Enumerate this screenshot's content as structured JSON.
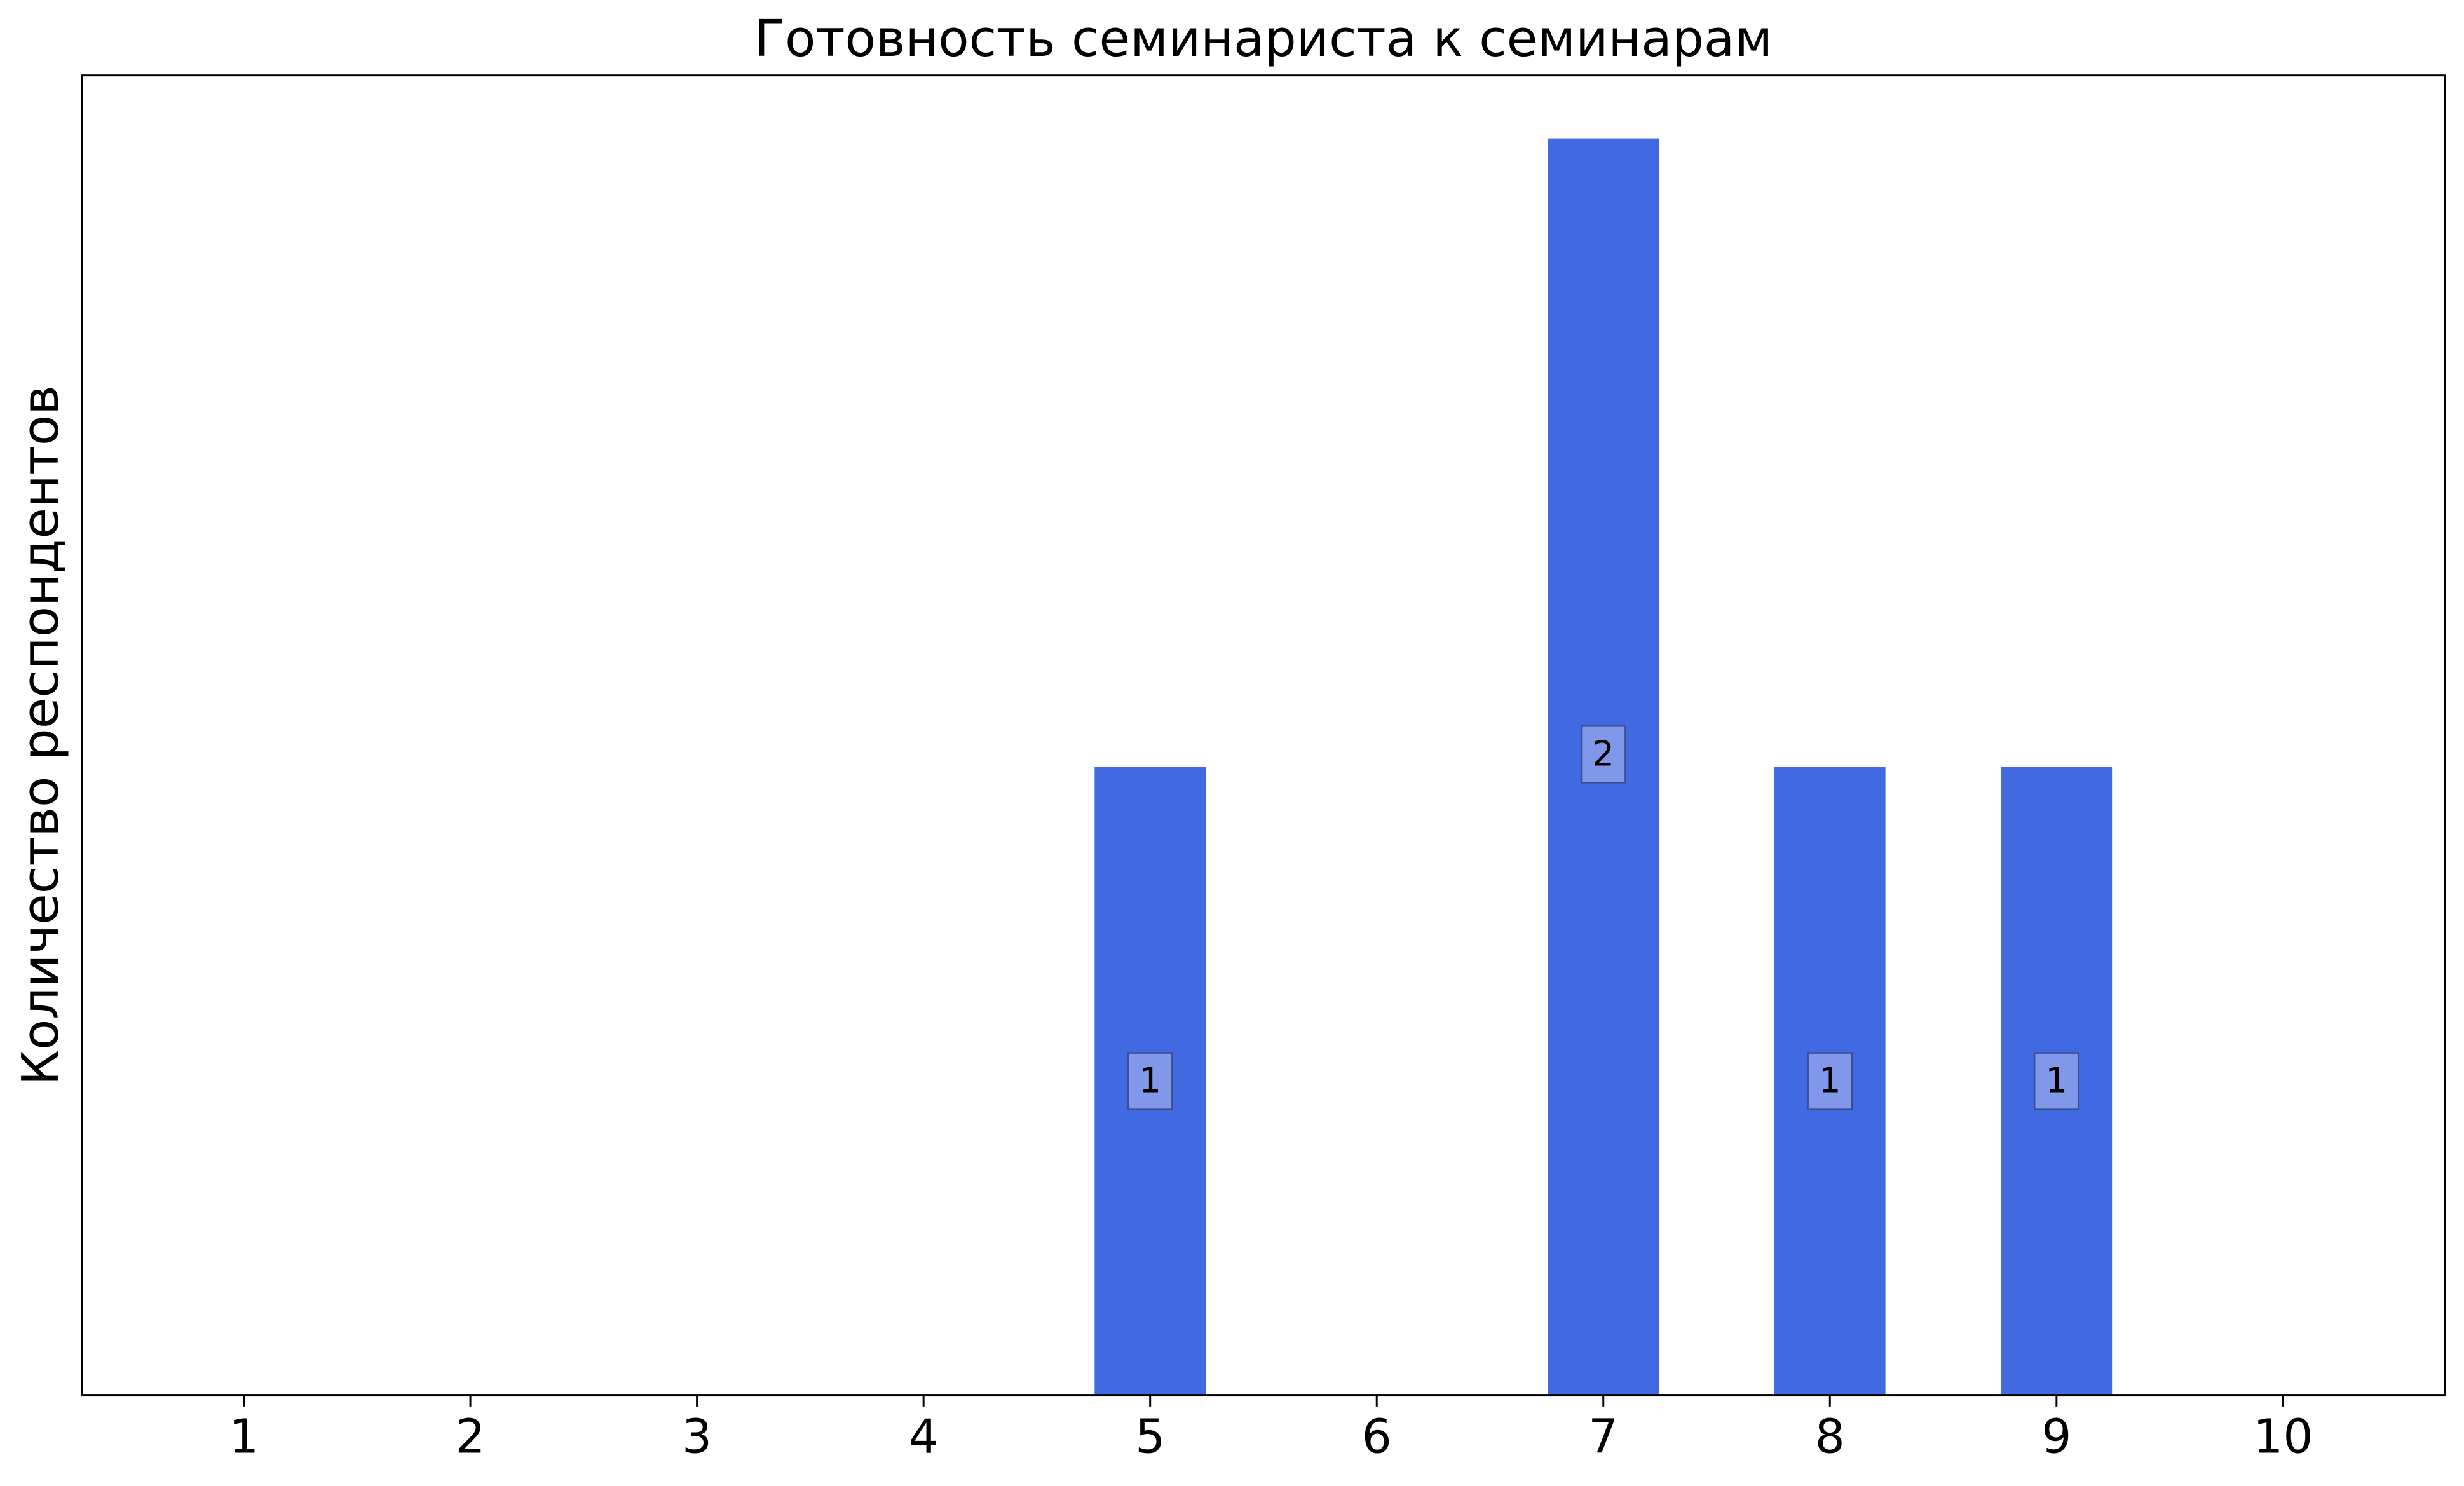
{
  "chart_data": {
    "type": "bar",
    "title": "Готовность семинариста к семинарам",
    "y_label": "Количество респондентов",
    "x": [
      1,
      2,
      3,
      4,
      5,
      6,
      7,
      8,
      9,
      10
    ],
    "values": [
      0,
      0,
      0,
      0,
      1,
      0,
      2,
      1,
      1,
      0
    ],
    "color": "#4169e1",
    "xlim": [
      0.285,
      10.715
    ],
    "xticks": [
      1,
      2,
      3,
      4,
      5,
      6,
      7,
      8,
      9,
      10
    ],
    "ylim": [
      0,
      2.1
    ]
  }
}
